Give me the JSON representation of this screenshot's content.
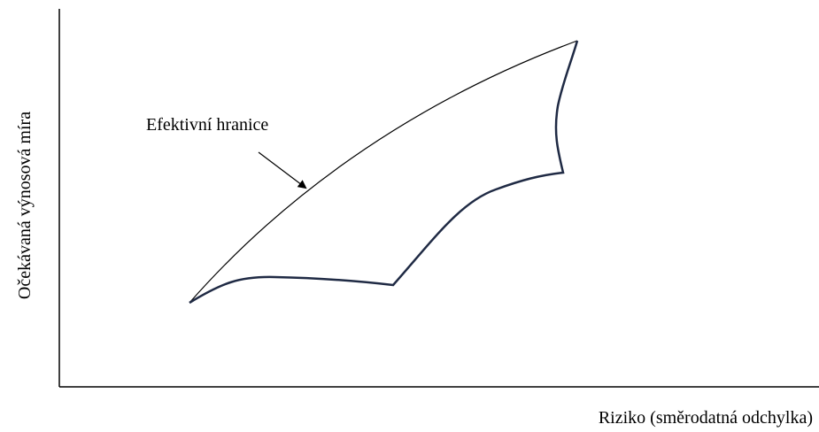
{
  "diagram": {
    "y_axis_label": "Očekávaná výnosová míra",
    "x_axis_label": "Riziko (směrodatná odchylka)",
    "annotation": "Efektivní hranice"
  }
}
